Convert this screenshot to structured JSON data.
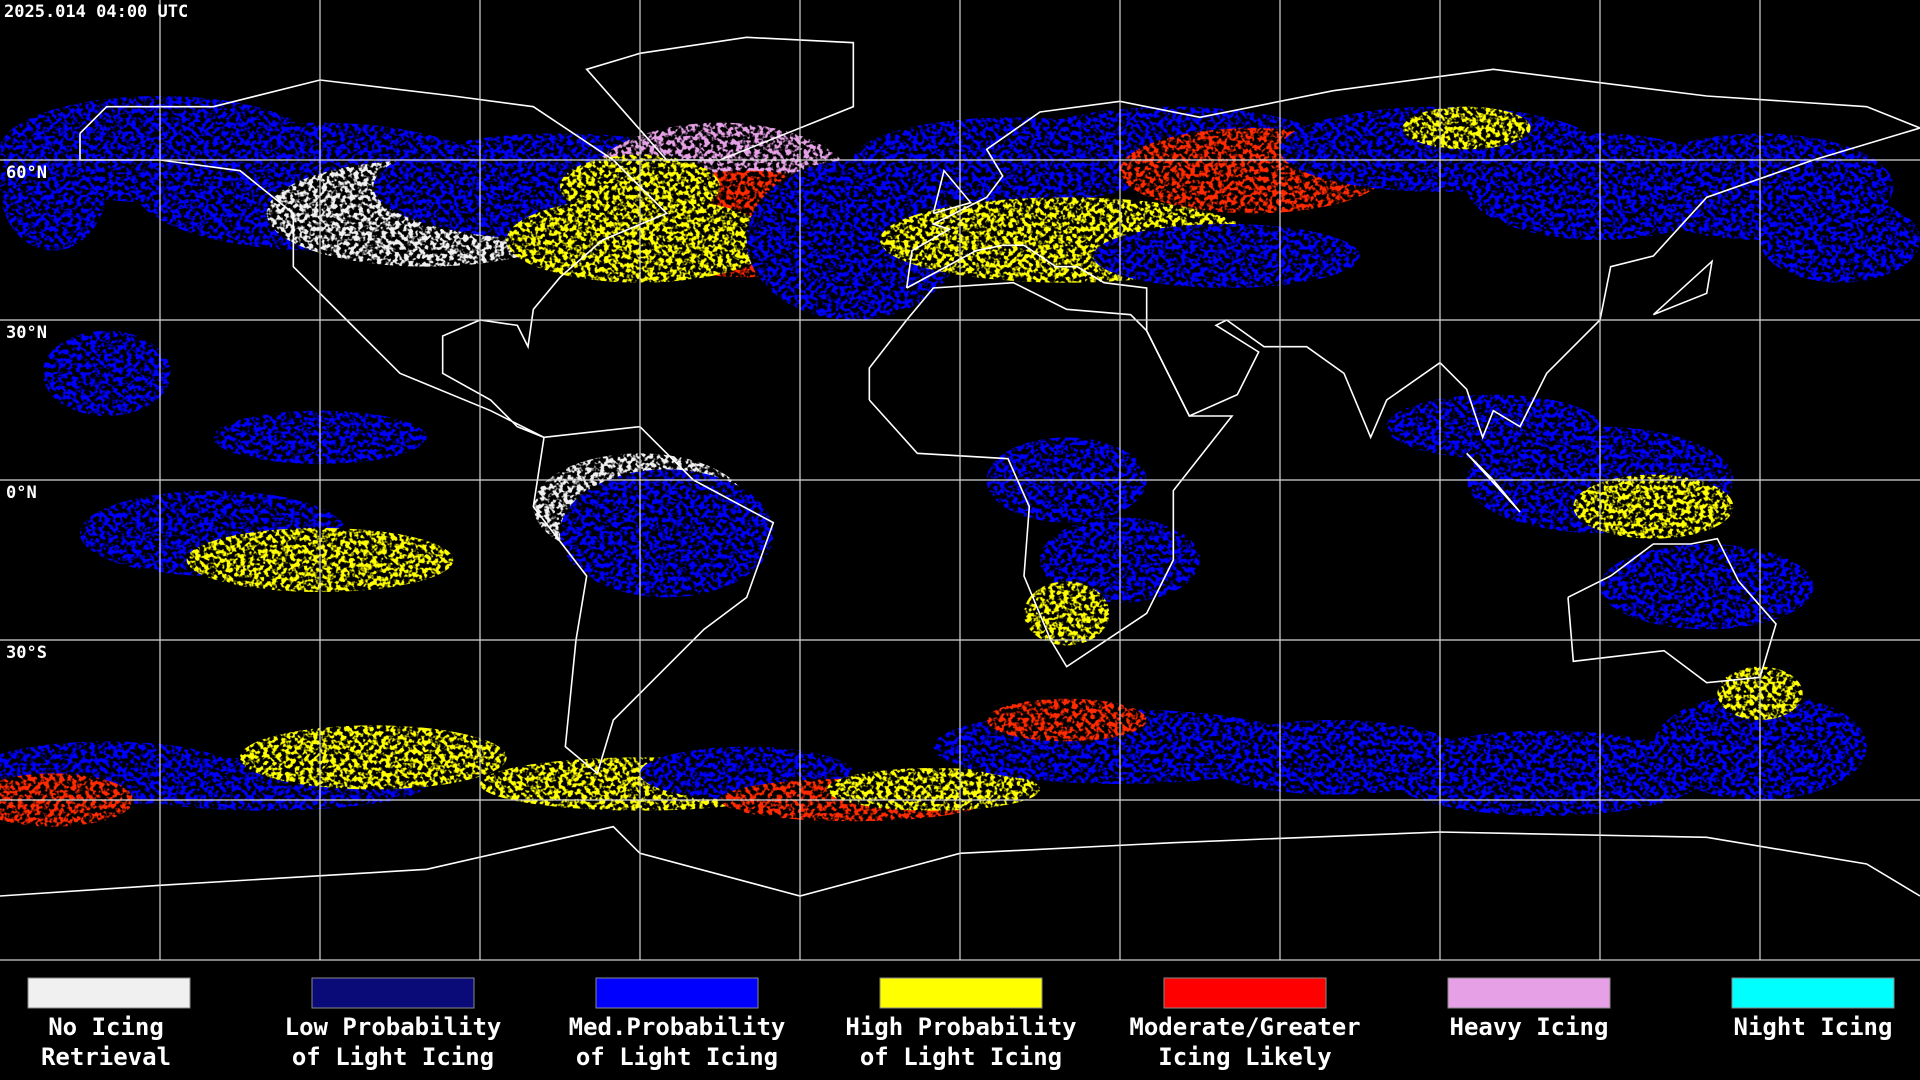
{
  "timestamp": "2025.014 04:00 UTC",
  "lat_labels": [
    "60°N",
    "30°N",
    "0°N",
    "30°S"
  ],
  "legend": [
    {
      "label_lines": [
        "No Icing",
        "Retrieval"
      ],
      "color": "#f0f0f0"
    },
    {
      "label_lines": [
        "Low Probability",
        "of Light Icing"
      ],
      "color": "#0a0a78"
    },
    {
      "label_lines": [
        "Med.Probability",
        "of Light Icing"
      ],
      "color": "#0000ff"
    },
    {
      "label_lines": [
        "High Probability",
        "of Light Icing"
      ],
      "color": "#ffff00"
    },
    {
      "label_lines": [
        "Moderate/Greater",
        "Icing Likely"
      ],
      "color": "#ff0000"
    },
    {
      "label_lines": [
        "Heavy Icing"
      ],
      "color": "#e6a0e6"
    },
    {
      "label_lines": [
        "Night Icing"
      ],
      "color": "#00ffff"
    }
  ]
}
